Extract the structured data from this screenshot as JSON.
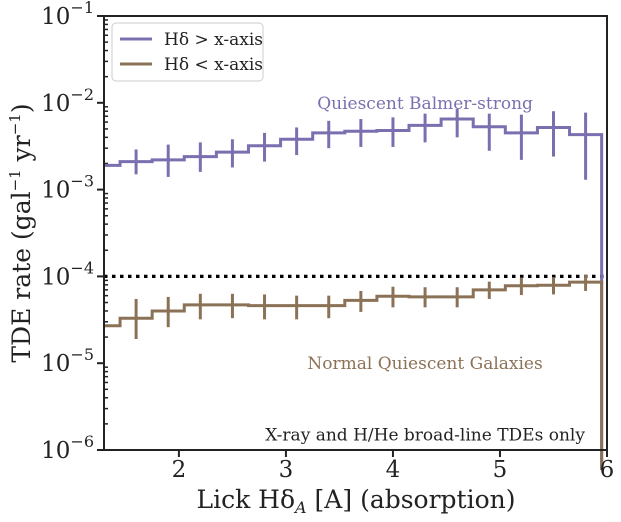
{
  "chart_data": {
    "type": "step",
    "xlabel": "Lick Hδ",
    "xlabel_sub": "A",
    "xlabel_rest": " [A] (absorption)",
    "ylabel": "TDE rate (gal",
    "ylabel_sup1": "−1",
    "ylabel_mid": " yr",
    "ylabel_sup2": "−1",
    "ylabel_end": ")",
    "xlim": [
      1.3,
      6.0
    ],
    "ylim_log10": [
      -6,
      -1
    ],
    "yscale": "log",
    "xticks": [
      2,
      3,
      4,
      5,
      6
    ],
    "xtick_labels": [
      "2",
      "3",
      "4",
      "5",
      "6"
    ],
    "yticks_log10": [
      -6,
      -5,
      -4,
      -3,
      -2,
      -1
    ],
    "ytick_base": "10",
    "ytick_exponents": [
      "−6",
      "−5",
      "−4",
      "−3",
      "−2",
      "−1"
    ],
    "bin_edges": [
      1.3,
      1.45,
      1.75,
      2.05,
      2.35,
      2.65,
      2.95,
      3.25,
      3.55,
      3.85,
      4.15,
      4.45,
      4.75,
      5.05,
      5.35,
      5.65,
      5.95
    ],
    "series": [
      {
        "name": "Hδ > x-axis",
        "color": "#7b6fb0",
        "values": [
          0.0019,
          0.0021,
          0.0022,
          0.0024,
          0.0027,
          0.0032,
          0.0038,
          0.0045,
          0.0047,
          0.0048,
          0.0055,
          0.0065,
          0.0053,
          0.0045,
          0.0052,
          0.0043
        ],
        "err_low": [
          0.0019,
          0.0015,
          0.0014,
          0.0016,
          0.0018,
          0.0021,
          0.0025,
          0.003,
          0.0031,
          0.0031,
          0.0035,
          0.004,
          0.0028,
          0.0022,
          0.0024,
          0.0013
        ],
        "err_high": [
          0.0019,
          0.0029,
          0.0033,
          0.0035,
          0.0038,
          0.0045,
          0.0052,
          0.0062,
          0.0065,
          0.0068,
          0.0075,
          0.0085,
          0.0075,
          0.0073,
          0.008,
          0.0077
        ],
        "drop_at_end": true
      },
      {
        "name": "Hδ < x-axis",
        "color": "#8b7257",
        "values": [
          2.7e-05,
          3.3e-05,
          4e-05,
          4.7e-05,
          4.7e-05,
          4.6e-05,
          4.6e-05,
          4.6e-05,
          5.3e-05,
          5.9e-05,
          5.8e-05,
          5.8e-05,
          7e-05,
          7.8e-05,
          7.9e-05,
          8.6e-05
        ],
        "err_low": [
          2.7e-05,
          1.9e-05,
          2.6e-05,
          3.2e-05,
          3.3e-05,
          3.2e-05,
          3.2e-05,
          3.3e-05,
          3.9e-05,
          4.4e-05,
          4.4e-05,
          4.4e-05,
          5.5e-05,
          6.1e-05,
          6.2e-05,
          6.8e-05
        ],
        "err_high": [
          2.7e-05,
          5.5e-05,
          5.8e-05,
          6.3e-05,
          6.3e-05,
          6.2e-05,
          6e-05,
          6e-05,
          6.8e-05,
          7.6e-05,
          7.5e-05,
          7.5e-05,
          8.7e-05,
          9.7e-05,
          9.8e-05,
          0.000104
        ],
        "drop_at_end": true
      }
    ],
    "hline": {
      "y": 0.0001,
      "style": "dotted",
      "color": "#000000"
    },
    "legend": {
      "position": "top-left",
      "entries": [
        "Hδ > x-axis",
        "Hδ < x-axis"
      ]
    },
    "annotations": {
      "balmer": {
        "text": "Quiescent Balmer-strong",
        "x": 4.3,
        "y": 0.01,
        "color": "#7b6fb0"
      },
      "normal": {
        "text": "Normal Quiescent Galaxies",
        "x": 4.3,
        "y": 1e-05,
        "color": "#8b7257"
      },
      "note": {
        "text": "X-ray and H/He broad-line TDEs only",
        "x": 4.3,
        "y": 1.5e-06,
        "color": "#222222"
      }
    }
  }
}
